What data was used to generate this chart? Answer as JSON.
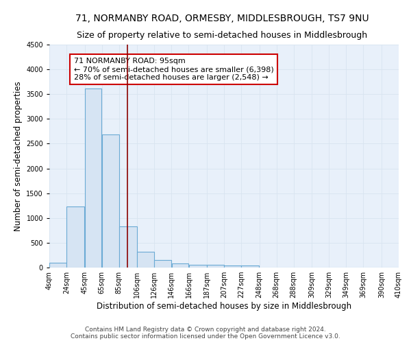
{
  "title": "71, NORMANBY ROAD, ORMESBY, MIDDLESBROUGH, TS7 9NU",
  "subtitle": "Size of property relative to semi-detached houses in Middlesbrough",
  "xlabel": "Distribution of semi-detached houses by size in Middlesbrough",
  "ylabel": "Number of semi-detached properties",
  "footer_line1": "Contains HM Land Registry data © Crown copyright and database right 2024.",
  "footer_line2": "Contains public sector information licensed under the Open Government Licence v3.0.",
  "annotation_title": "71 NORMANBY ROAD: 95sqm",
  "annotation_line1": "← 70% of semi-detached houses are smaller (6,398)",
  "annotation_line2": "28% of semi-detached houses are larger (2,548) →",
  "property_size": 95,
  "bar_left_edges": [
    4,
    24,
    45,
    65,
    85,
    106,
    126,
    146,
    166,
    187,
    207,
    227,
    248,
    268,
    288,
    309,
    329,
    349,
    369,
    390
  ],
  "bar_widths": [
    20,
    21,
    20,
    20,
    21,
    20,
    20,
    20,
    21,
    20,
    20,
    21,
    20,
    20,
    21,
    20,
    20,
    20,
    21,
    20
  ],
  "bar_heights": [
    100,
    1230,
    3620,
    2680,
    830,
    320,
    155,
    80,
    55,
    50,
    45,
    35,
    0,
    0,
    0,
    0,
    0,
    0,
    0,
    0
  ],
  "tick_labels": [
    "4sqm",
    "24sqm",
    "45sqm",
    "65sqm",
    "85sqm",
    "106sqm",
    "126sqm",
    "146sqm",
    "166sqm",
    "187sqm",
    "207sqm",
    "227sqm",
    "248sqm",
    "268sqm",
    "288sqm",
    "309sqm",
    "329sqm",
    "349sqm",
    "369sqm",
    "390sqm",
    "410sqm"
  ],
  "tick_positions": [
    4,
    24,
    45,
    65,
    85,
    106,
    126,
    146,
    166,
    187,
    207,
    227,
    248,
    268,
    288,
    309,
    329,
    349,
    369,
    390,
    410
  ],
  "ylim": [
    0,
    4500
  ],
  "xlim": [
    4,
    410
  ],
  "bar_fill_color": "#d6e4f3",
  "bar_edge_color": "#6aaad4",
  "vline_color": "#8b0000",
  "grid_color": "#d8e4f0",
  "background_color": "#e8f0fa",
  "annotation_box_color": "#cc0000",
  "title_fontsize": 10,
  "subtitle_fontsize": 9,
  "axis_label_fontsize": 8.5,
  "tick_fontsize": 7,
  "annotation_fontsize": 8,
  "footer_fontsize": 6.5
}
